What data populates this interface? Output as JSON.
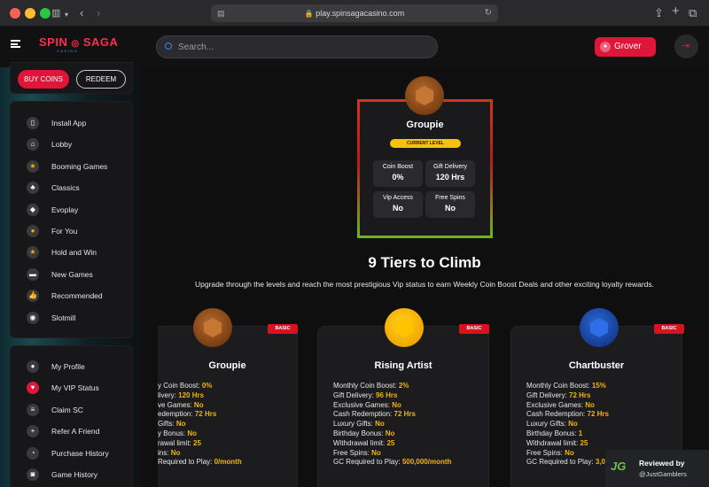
{
  "browser": {
    "url": "play.spinsagacasino.com"
  },
  "brand": {
    "name_left": "SPIN",
    "name_right": "SAGA",
    "sub": "CASINO"
  },
  "search": {
    "placeholder": "Search..."
  },
  "user": {
    "name": "Grover"
  },
  "actions": {
    "buy": "BUY COINS",
    "redeem": "REDEEM"
  },
  "nav_main": [
    {
      "label": "Install App",
      "icon": "phone-icon",
      "glyph": "▯"
    },
    {
      "label": "Lobby",
      "icon": "home-icon",
      "glyph": "⌂"
    },
    {
      "label": "Booming Games",
      "icon": "star-icon",
      "glyph": "★"
    },
    {
      "label": "Classics",
      "icon": "cherries-icon",
      "glyph": "♣"
    },
    {
      "label": "Evoplay",
      "icon": "evoplay-icon",
      "glyph": "◆"
    },
    {
      "label": "For You",
      "icon": "coin-icon",
      "glyph": "●"
    },
    {
      "label": "Hold and Win",
      "icon": "star-icon",
      "glyph": "★"
    },
    {
      "label": "New Games",
      "icon": "ticket-icon",
      "glyph": "▬"
    },
    {
      "label": "Recommended",
      "icon": "thumbs-up-icon",
      "glyph": "👍"
    },
    {
      "label": "Slotmill",
      "icon": "slotmill-icon",
      "glyph": "◉"
    }
  ],
  "nav_account": [
    {
      "label": "My Profile",
      "icon": "user-icon",
      "glyph": "●"
    },
    {
      "label": "My VIP Status",
      "icon": "vip-icon",
      "glyph": "♥"
    },
    {
      "label": "Claim SC",
      "icon": "coins-stack-icon",
      "glyph": "≡"
    },
    {
      "label": "Refer A Friend",
      "icon": "add-user-icon",
      "glyph": "+"
    },
    {
      "label": "Purchase History",
      "icon": "history-icon",
      "glyph": "◔"
    },
    {
      "label": "Game History",
      "icon": "game-history-icon",
      "glyph": "◙"
    }
  ],
  "current": {
    "tier": "Groupie",
    "level_label": "CURRENT LEVEL",
    "stats": [
      {
        "label": "Coin Boost",
        "value": "0%"
      },
      {
        "label": "Gift Delivery",
        "value": "120 Hrs"
      },
      {
        "label": "Vip Access",
        "value": "No"
      },
      {
        "label": "Free Spins",
        "value": "No"
      }
    ]
  },
  "heading": {
    "title": "9 Tiers to Climb",
    "subtitle": "Upgrade through the levels and reach the most prestigious Vip status to earn Weekly Coin Boost Deals and other exciting loyalty rewards."
  },
  "ribbon_label": "BASIC",
  "tiers": [
    {
      "name": "Groupie",
      "lines": [
        {
          "k": "y Coin Boost:",
          "v": "0%"
        },
        {
          "k": "livery:",
          "v": "120 Hrs"
        },
        {
          "k": "ve Games:",
          "v": "No"
        },
        {
          "k": "edemption:",
          "v": "72 Hrs"
        },
        {
          "k": "Gifts:",
          "v": "No"
        },
        {
          "k": "y Bonus:",
          "v": "No"
        },
        {
          "k": "rawal limit:",
          "v": "25"
        },
        {
          "k": "ins:",
          "v": "No"
        },
        {
          "k": "Required to Play:",
          "v": "0/month"
        }
      ]
    },
    {
      "name": "Rising Artist",
      "lines": [
        {
          "k": "Monthly Coin Boost:",
          "v": "2%"
        },
        {
          "k": "Gift Delivery:",
          "v": "96 Hrs"
        },
        {
          "k": "Exclusive Games:",
          "v": "No"
        },
        {
          "k": "Cash Redemption:",
          "v": "72 Hrs"
        },
        {
          "k": "Luxury Gifts:",
          "v": "No"
        },
        {
          "k": "Birthday Bonus:",
          "v": "No"
        },
        {
          "k": "Withdrawal limit:",
          "v": "25"
        },
        {
          "k": "Free Spins:",
          "v": "No"
        },
        {
          "k": "GC Required to Play:",
          "v": "500,000/month"
        }
      ]
    },
    {
      "name": "Chartbuster",
      "lines": [
        {
          "k": "Monthly Coin Boost:",
          "v": "15%"
        },
        {
          "k": "Gift Delivery:",
          "v": "72 Hrs"
        },
        {
          "k": "Exclusive Games:",
          "v": "No"
        },
        {
          "k": "Cash Redemption:",
          "v": "72 Hrs"
        },
        {
          "k": "Luxury Gifts:",
          "v": "No"
        },
        {
          "k": "Birthday Bonus:",
          "v": "1"
        },
        {
          "k": "Withdrawal limit:",
          "v": "25"
        },
        {
          "k": "Free Spins:",
          "v": "No"
        },
        {
          "k": "GC Required to Play:",
          "v": "3,00"
        }
      ]
    }
  ],
  "review": {
    "line1": "Reviewed by",
    "line2": "@JustGamblers",
    "logo": "JG"
  },
  "colors": {
    "accent": "#e0153a",
    "gold": "#f0b400",
    "bronze": "#8a4a1c",
    "sapphire": "#1f4fb0"
  }
}
